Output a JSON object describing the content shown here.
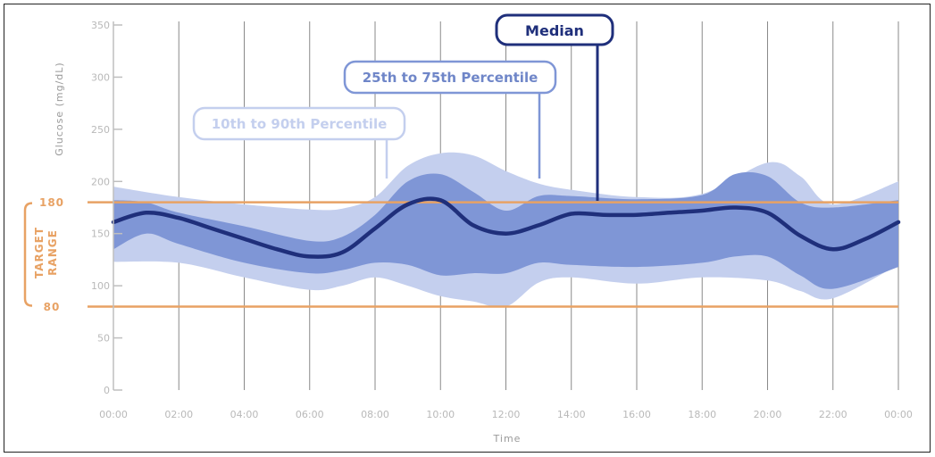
{
  "colors": {
    "outer_band": "#c4cfee",
    "inner_band": "#7f96d6",
    "median": "#1f2f7b",
    "target": "#e8a264",
    "grid": "#8a8a8a",
    "tick": "#b9b9b9"
  },
  "chart_data": {
    "type": "line",
    "xlabel": "Time",
    "ylabel": "Glucose (mg/dL)",
    "ylim": [
      0,
      350
    ],
    "yticks": [
      0,
      50,
      100,
      150,
      200,
      250,
      300,
      350
    ],
    "xlim_hours": [
      0,
      24
    ],
    "x_ticks": [
      "00:00",
      "02:00",
      "04:00",
      "06:00",
      "08:00",
      "10:00",
      "12:00",
      "14:00",
      "16:00",
      "18:00",
      "20:00",
      "22:00",
      "00:00"
    ],
    "grid": true,
    "target_range": {
      "label_line1": "TARGET",
      "label_line2": "RANGE",
      "low": 80,
      "high": 180,
      "low_label": "80",
      "high_label": "180"
    },
    "series": [
      {
        "name": "10th to 90th Percentile",
        "kind": "band",
        "x": [
          "00:00",
          "02:00",
          "04:00",
          "06:00",
          "07:00",
          "08:00",
          "09:00",
          "10:00",
          "11:00",
          "12:00",
          "13:00",
          "14:00",
          "16:00",
          "18:00",
          "20:00",
          "21:00",
          "22:00",
          "24:00"
        ],
        "upper": [
          195,
          185,
          178,
          173,
          174,
          185,
          215,
          227,
          225,
          210,
          198,
          192,
          185,
          188,
          218,
          205,
          178,
          200
        ],
        "lower": [
          123,
          122,
          108,
          96,
          100,
          108,
          100,
          90,
          85,
          80,
          103,
          108,
          102,
          108,
          105,
          95,
          88,
          120
        ]
      },
      {
        "name": "25th to 75th Percentile",
        "kind": "band",
        "x": [
          "00:00",
          "01:00",
          "02:00",
          "04:00",
          "06:00",
          "07:00",
          "08:00",
          "09:00",
          "10:00",
          "11:00",
          "12:00",
          "13:00",
          "14:00",
          "16:00",
          "18:00",
          "19:00",
          "20:00",
          "21:00",
          "22:00",
          "24:00"
        ],
        "upper": [
          182,
          180,
          170,
          157,
          143,
          147,
          168,
          200,
          207,
          190,
          172,
          186,
          186,
          183,
          187,
          207,
          205,
          180,
          175,
          182
        ],
        "lower": [
          135,
          150,
          140,
          122,
          112,
          115,
          122,
          120,
          110,
          112,
          112,
          122,
          120,
          118,
          122,
          128,
          128,
          110,
          97,
          118
        ]
      },
      {
        "name": "Median",
        "kind": "line",
        "x": [
          "00:00",
          "01:00",
          "02:00",
          "03:00",
          "04:00",
          "05:00",
          "06:00",
          "07:00",
          "08:00",
          "09:00",
          "10:00",
          "11:00",
          "12:00",
          "13:00",
          "14:00",
          "15:00",
          "16:00",
          "17:00",
          "18:00",
          "19:00",
          "20:00",
          "21:00",
          "22:00",
          "23:00",
          "24:00"
        ],
        "values": [
          161,
          170,
          165,
          155,
          145,
          135,
          128,
          132,
          155,
          178,
          182,
          158,
          150,
          158,
          169,
          168,
          168,
          170,
          172,
          175,
          170,
          148,
          135,
          145,
          161
        ]
      }
    ]
  }
}
